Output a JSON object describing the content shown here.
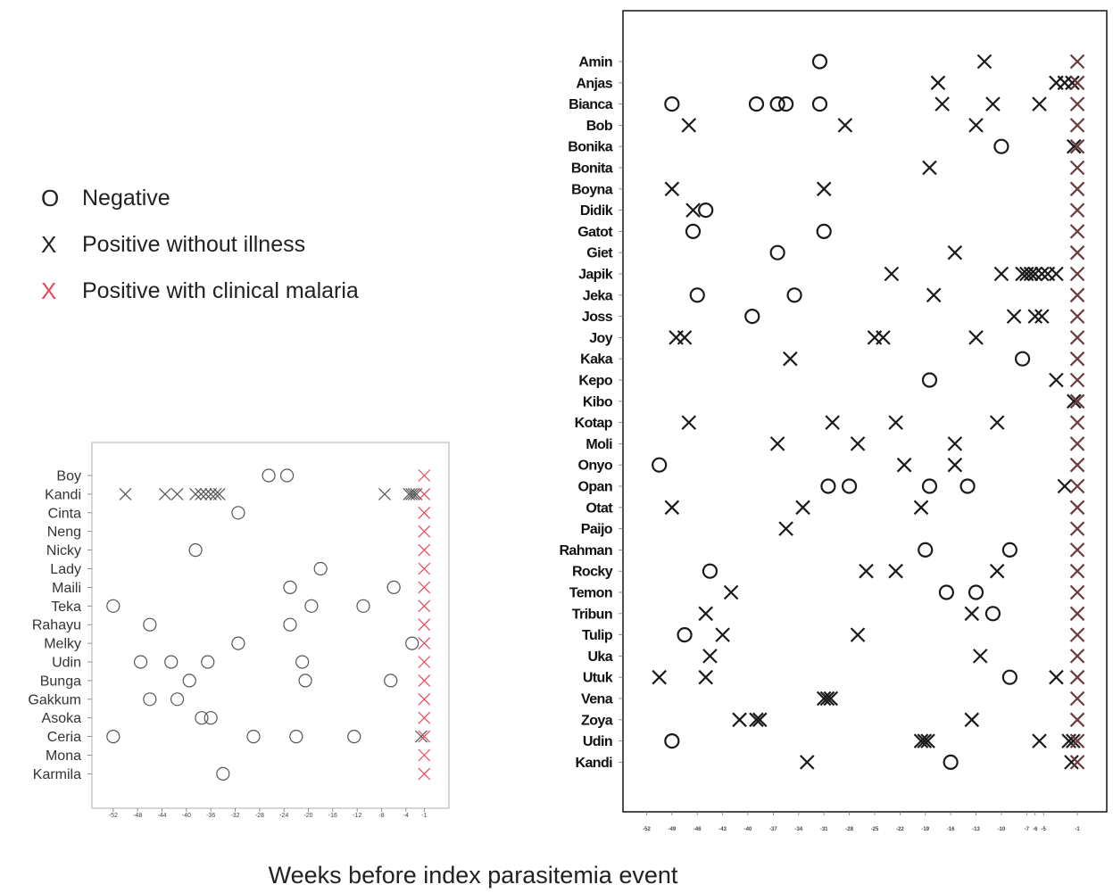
{
  "legend": {
    "negative": {
      "symbol": "O",
      "label": "Negative",
      "color": "#222222"
    },
    "positive_no_illness": {
      "symbol": "X",
      "label": "Positive without illness",
      "color": "#222222"
    },
    "positive_malaria": {
      "symbol": "X",
      "label": "Positive with clinical malaria",
      "color": "#e8485a"
    }
  },
  "xlabel": "Weeks before index parasitemia event",
  "chart_data": [
    {
      "type": "scatter",
      "xticks": [
        -52,
        -48,
        -44,
        -40,
        -36,
        -32,
        -28,
        -24,
        -20,
        -16,
        -12,
        -8,
        -4,
        -1
      ],
      "xlim": [
        -53,
        1
      ],
      "tick_labels": [
        "-52",
        "-48",
        "-44",
        "-40",
        "-36",
        "-32",
        "-28",
        "-24",
        "-20",
        "-16",
        "-12",
        "-8",
        "-4",
        "-1"
      ],
      "malaria_color": "#e8485a",
      "rows": [
        {
          "name": "Boy",
          "neg": [
            -26.5,
            -23.5
          ],
          "pos": [],
          "mal": [
            -1
          ]
        },
        {
          "name": "Kandi",
          "neg": [],
          "pos": [
            -50,
            -43.5,
            -41.5,
            -38.5,
            -37.6,
            -36.8,
            -36,
            -35.2,
            -34.6,
            -7.5,
            -3.5,
            -3.1,
            -2.7,
            -2.3
          ],
          "mal": [
            -1
          ]
        },
        {
          "name": "Cinta",
          "neg": [
            -31.5
          ],
          "pos": [],
          "mal": [
            -1
          ]
        },
        {
          "name": "Neng",
          "neg": [],
          "pos": [],
          "mal": [
            -1
          ]
        },
        {
          "name": "Nicky",
          "neg": [
            -38.5
          ],
          "pos": [],
          "mal": [
            -1
          ]
        },
        {
          "name": "Lady",
          "neg": [
            -18
          ],
          "pos": [],
          "mal": [
            -1
          ]
        },
        {
          "name": "Maili",
          "neg": [
            -23,
            -6
          ],
          "pos": [],
          "mal": [
            -1
          ]
        },
        {
          "name": "Teka",
          "neg": [
            -52,
            -19.5,
            -11
          ],
          "pos": [],
          "mal": [
            -1
          ]
        },
        {
          "name": "Rahayu",
          "neg": [
            -46,
            -23
          ],
          "pos": [],
          "mal": [
            -1
          ]
        },
        {
          "name": "Melky",
          "neg": [
            -31.5,
            -3
          ],
          "pos": [],
          "mal": [
            -1
          ]
        },
        {
          "name": "Udin",
          "neg": [
            -47.5,
            -42.5,
            -36.5,
            -21
          ],
          "pos": [],
          "mal": [
            -1
          ]
        },
        {
          "name": "Bunga",
          "neg": [
            -39.5,
            -20.5,
            -6.5
          ],
          "pos": [],
          "mal": [
            -1
          ]
        },
        {
          "name": "Gakkum",
          "neg": [
            -46,
            -41.5
          ],
          "pos": [],
          "mal": [
            -1
          ]
        },
        {
          "name": "Asoka",
          "neg": [
            -37.5,
            -36
          ],
          "pos": [],
          "mal": [
            -1
          ]
        },
        {
          "name": "Ceria",
          "neg": [
            -52,
            -29,
            -22,
            -12.5
          ],
          "pos": [
            -1.5
          ],
          "mal": [
            -1
          ]
        },
        {
          "name": "Mona",
          "neg": [],
          "pos": [],
          "mal": [
            -1
          ]
        },
        {
          "name": "Karmila",
          "neg": [
            -34
          ],
          "pos": [],
          "mal": [
            -1
          ]
        }
      ]
    },
    {
      "type": "scatter",
      "xticks": [
        -52,
        -49,
        -46,
        -43,
        -40,
        -37,
        -34,
        -31,
        -28,
        -25,
        -22,
        -19,
        -16,
        -13,
        -10,
        -7,
        -6,
        -5,
        -1
      ],
      "xlim": [
        -53,
        1
      ],
      "tick_labels": [
        "-52",
        "-49",
        "-46",
        "-43",
        "-40",
        "-37",
        "-34",
        "-31",
        "-28",
        "-25",
        "-22",
        "-19",
        "-16",
        "-13",
        "-10",
        "-7",
        "-6",
        "-5",
        "-1"
      ],
      "malaria_color": "#6b3a3f",
      "rows": [
        {
          "name": "Amin",
          "neg": [
            -31.5
          ],
          "pos": [
            -12
          ],
          "mal": [
            -1
          ]
        },
        {
          "name": "Anjas",
          "neg": [],
          "pos": [
            -17.5,
            -3.5,
            -2.5,
            -1.6
          ],
          "mal": [
            -1
          ]
        },
        {
          "name": "Bianca",
          "neg": [
            -49,
            -39,
            -36.5,
            -35.5,
            -31.5
          ],
          "pos": [
            -17,
            -11,
            -5.5
          ],
          "mal": [
            -1
          ]
        },
        {
          "name": "Bob",
          "neg": [],
          "pos": [
            -47,
            -28.5,
            -13
          ],
          "mal": [
            -1
          ]
        },
        {
          "name": "Bonika",
          "neg": [
            -10
          ],
          "pos": [
            -1.4
          ],
          "mal": [
            -1
          ]
        },
        {
          "name": "Bonita",
          "neg": [],
          "pos": [
            -18.5
          ],
          "mal": [
            -1
          ]
        },
        {
          "name": "Boyna",
          "neg": [],
          "pos": [
            -49,
            -31
          ],
          "mal": [
            -1
          ]
        },
        {
          "name": "Didik",
          "neg": [
            -45
          ],
          "pos": [
            -46.5
          ],
          "mal": [
            -1
          ]
        },
        {
          "name": "Gatot",
          "neg": [
            -46.5,
            -31
          ],
          "pos": [],
          "mal": [
            -1
          ]
        },
        {
          "name": "Giet",
          "neg": [
            -36.5
          ],
          "pos": [
            -15.5
          ],
          "mal": [
            -1
          ]
        },
        {
          "name": "Japik",
          "neg": [],
          "pos": [
            -23,
            -10,
            -7.5,
            -7,
            -6.5,
            -6,
            -5.2,
            -4.5,
            -3.5
          ],
          "mal": [
            -1
          ]
        },
        {
          "name": "Jeka",
          "neg": [
            -46,
            -34.5
          ],
          "pos": [
            -18
          ],
          "mal": [
            -1
          ]
        },
        {
          "name": "Joss",
          "neg": [
            -39.5
          ],
          "pos": [
            -8.5,
            -6,
            -5.2
          ],
          "mal": [
            -1
          ]
        },
        {
          "name": "Joy",
          "neg": [],
          "pos": [
            -48.5,
            -47.5,
            -25,
            -24,
            -13
          ],
          "mal": [
            -1
          ]
        },
        {
          "name": "Kaka",
          "neg": [
            -7.5
          ],
          "pos": [
            -35
          ],
          "mal": [
            -1
          ]
        },
        {
          "name": "Kepo",
          "neg": [
            -18.5
          ],
          "pos": [
            -3.5
          ],
          "mal": [
            -1
          ]
        },
        {
          "name": "Kibo",
          "neg": [],
          "pos": [
            -1.4
          ],
          "mal": [
            -1
          ]
        },
        {
          "name": "Kotap",
          "neg": [],
          "pos": [
            -47,
            -30,
            -22.5,
            -10.5
          ],
          "mal": [
            -1
          ]
        },
        {
          "name": "Moli",
          "neg": [],
          "pos": [
            -36.5,
            -27,
            -15.5
          ],
          "mal": [
            -1
          ]
        },
        {
          "name": "Onyo",
          "neg": [
            -50.5
          ],
          "pos": [
            -21.5,
            -15.5
          ],
          "mal": [
            -1
          ]
        },
        {
          "name": "Opan",
          "neg": [
            -30.5,
            -28,
            -18.5,
            -14
          ],
          "pos": [
            -2.5
          ],
          "mal": [
            -1
          ]
        },
        {
          "name": "Otat",
          "neg": [],
          "pos": [
            -49,
            -33.5,
            -19.5
          ],
          "mal": [
            -1
          ]
        },
        {
          "name": "Paijo",
          "neg": [],
          "pos": [
            -35.5
          ],
          "mal": [
            -1
          ]
        },
        {
          "name": "Rahman",
          "neg": [
            -19,
            -9
          ],
          "pos": [],
          "mal": [
            -1
          ]
        },
        {
          "name": "Rocky",
          "neg": [
            -44.5
          ],
          "pos": [
            -26,
            -22.5,
            -10.5
          ],
          "mal": [
            -1
          ]
        },
        {
          "name": "Temon",
          "neg": [
            -16.5,
            -13
          ],
          "pos": [
            -42
          ],
          "mal": [
            -1
          ]
        },
        {
          "name": "Tribun",
          "neg": [
            -11
          ],
          "pos": [
            -45,
            -13.5
          ],
          "mal": [
            -1
          ]
        },
        {
          "name": "Tulip",
          "neg": [
            -47.5
          ],
          "pos": [
            -43,
            -27
          ],
          "mal": [
            -1
          ]
        },
        {
          "name": "Uka",
          "neg": [],
          "pos": [
            -44.5,
            -12.5
          ],
          "mal": [
            -1
          ]
        },
        {
          "name": "Utuk",
          "neg": [
            -9
          ],
          "pos": [
            -50.5,
            -45,
            -3.5
          ],
          "mal": [
            -1
          ]
        },
        {
          "name": "Vena",
          "neg": [],
          "pos": [
            -31,
            -30.6,
            -30.2
          ],
          "mal": [
            -1
          ]
        },
        {
          "name": "Zoya",
          "neg": [],
          "pos": [
            -41,
            -39,
            -38.6,
            -13.5
          ],
          "mal": [
            -1
          ]
        },
        {
          "name": "Udin",
          "neg": [
            -49
          ],
          "pos": [
            -19.5,
            -19.1,
            -18.7,
            -5.5,
            -2,
            -1.5
          ],
          "mal": [
            -1
          ]
        },
        {
          "name": "Kandi",
          "neg": [
            -16
          ],
          "pos": [
            -33,
            -1.7
          ],
          "mal": [
            -1
          ]
        }
      ]
    }
  ]
}
